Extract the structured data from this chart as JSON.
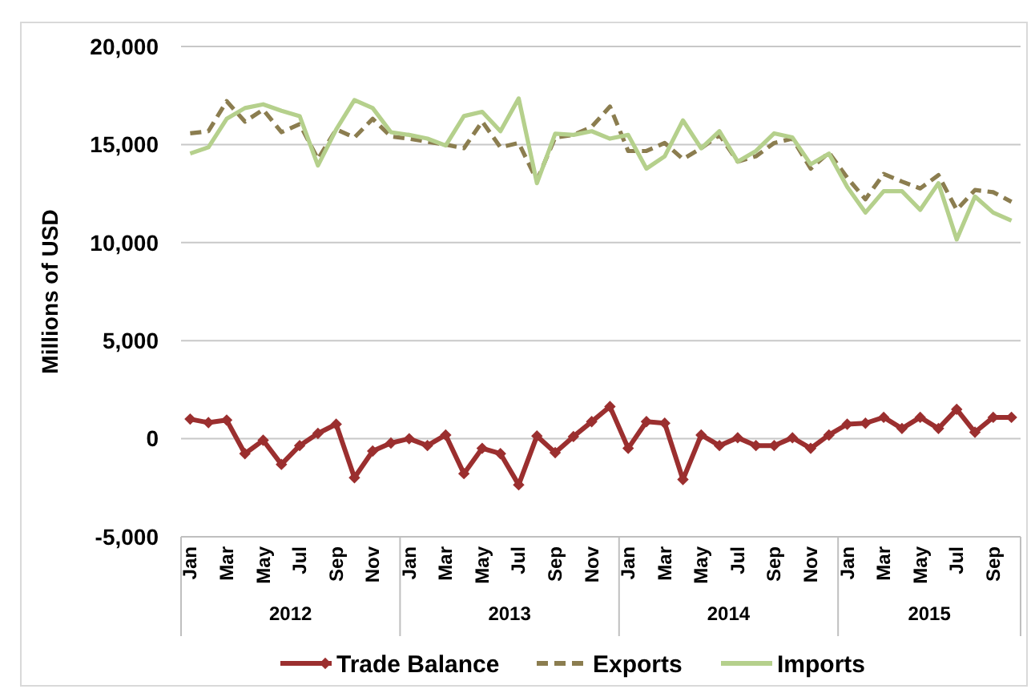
{
  "chart_data": {
    "type": "line",
    "ylabel": "Millions of USD",
    "categories": [
      "Jan",
      null,
      "Mar",
      null,
      "May",
      null,
      "Jul",
      null,
      "Sep",
      null,
      "Nov",
      null,
      "Jan",
      null,
      "Mar",
      null,
      "May",
      null,
      "Jul",
      null,
      "Sep",
      null,
      "Nov",
      null,
      "Jan",
      null,
      "Mar",
      null,
      "May",
      null,
      "Jul",
      null,
      "Sep",
      null,
      "Nov",
      null,
      "Jan",
      null,
      "Mar",
      null,
      "May",
      null,
      "Jul",
      null,
      "Sep",
      null
    ],
    "annotations": [
      "2012",
      "2013",
      "2014",
      "2015"
    ],
    "ylim": [
      -5000,
      20000
    ],
    "yticks": [
      {
        "value": -5000,
        "label": "-5,000"
      },
      {
        "value": 0,
        "label": "0"
      },
      {
        "value": 5000,
        "label": "5,000"
      },
      {
        "value": 10000,
        "label": "10,000"
      },
      {
        "value": 15000,
        "label": "15,000"
      },
      {
        "value": 20000,
        "label": "20,000"
      }
    ],
    "grid": "y",
    "legend": "bottom",
    "series": [
      {
        "name": "Trade Balance",
        "color": "#9b2f2f",
        "marker": "diamond",
        "line_style": "solid",
        "values": [
          1000,
          820,
          950,
          -760,
          -80,
          -1310,
          -350,
          270,
          740,
          -1990,
          -630,
          -220,
          0,
          -350,
          190,
          -1780,
          -490,
          -760,
          -2350,
          140,
          -710,
          110,
          870,
          1640,
          -490,
          870,
          790,
          -2080,
          190,
          -350,
          50,
          -350,
          -350,
          50,
          -490,
          190,
          740,
          790,
          1090,
          520,
          1090,
          520,
          1500,
          330,
          1090,
          1090
        ]
      },
      {
        "name": "Exports",
        "color": "#8b7d4f",
        "marker": "none",
        "line_style": "dashed",
        "values": [
          15570,
          15680,
          17210,
          16170,
          16780,
          15630,
          16040,
          14260,
          15770,
          15360,
          16310,
          15410,
          15300,
          15140,
          15000,
          14810,
          16170,
          14860,
          15080,
          13170,
          15360,
          15490,
          15900,
          16940,
          14670,
          14670,
          15080,
          14260,
          14810,
          15490,
          14130,
          14400,
          15080,
          15300,
          13770,
          14590,
          13310,
          12210,
          13500,
          13110,
          12760,
          13440,
          11670,
          12680,
          12570,
          12080
        ]
      },
      {
        "name": "Imports",
        "color": "#b5d08c",
        "marker": "none",
        "line_style": "solid",
        "values": [
          14540,
          14860,
          16310,
          16860,
          17050,
          16720,
          16450,
          13930,
          15770,
          17270,
          16860,
          15630,
          15490,
          15300,
          14950,
          16450,
          16670,
          15680,
          17350,
          13030,
          15550,
          15490,
          15680,
          15300,
          15490,
          13770,
          14400,
          16230,
          14810,
          15680,
          14130,
          14670,
          15570,
          15360,
          13990,
          14540,
          12840,
          11530,
          12620,
          12620,
          11670,
          13030,
          10160,
          12350,
          11530,
          11120
        ]
      }
    ]
  }
}
